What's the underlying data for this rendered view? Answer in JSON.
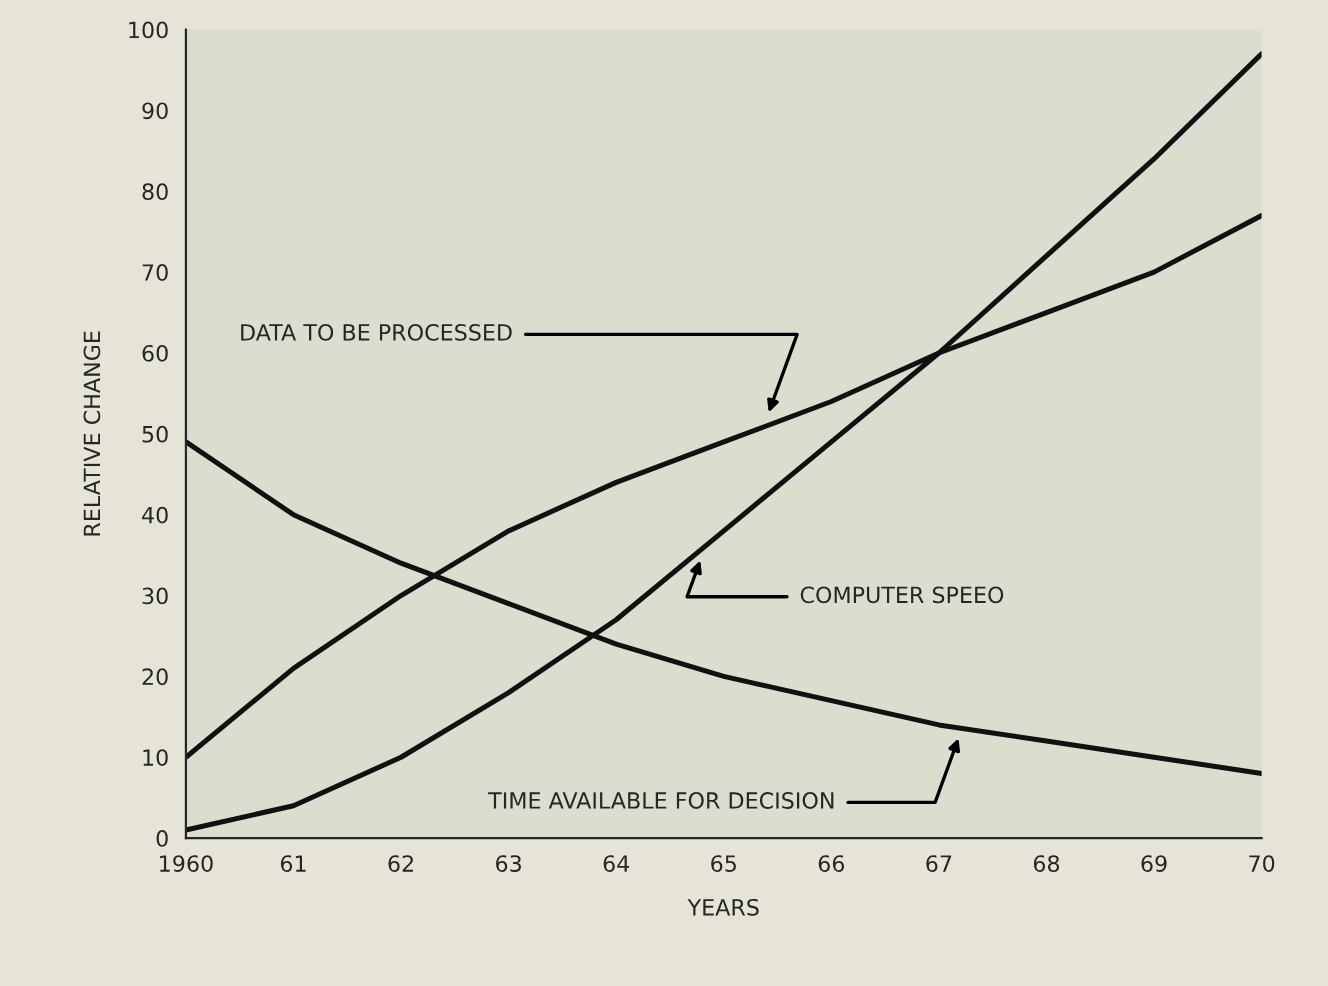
{
  "chart_data": {
    "type": "line",
    "xlabel": "YEARS",
    "ylabel": "RELATIVE CHANGE",
    "series": [
      {
        "color": "#111111",
        "x": [
          1960,
          1961,
          1962,
          1963,
          1964,
          1965,
          1966,
          1967,
          1968,
          1969,
          1970
        ],
        "values": [
          10,
          21,
          30,
          38,
          44,
          49,
          54,
          60,
          65,
          70,
          77
        ]
      },
      {
        "color": "#111111",
        "x": [
          1960,
          1961,
          1962,
          1963,
          1964,
          1965,
          1966,
          1967,
          1968,
          1969,
          1970
        ],
        "values": [
          1,
          4,
          10,
          18,
          27,
          38,
          49,
          60,
          72,
          84,
          97
        ]
      },
      {
        "color": "#111111",
        "x": [
          1960,
          1961,
          1962,
          1963,
          1964,
          1965,
          1966,
          1967,
          1968,
          1969,
          1970
        ],
        "values": [
          49,
          40,
          34,
          29,
          24,
          20,
          17,
          14,
          12,
          10,
          8
        ]
      }
    ],
    "xlim": [
      1960,
      1970
    ],
    "ylim": [
      0,
      100
    ],
    "xticks": [
      {
        "value": 1960,
        "label": "1960"
      },
      {
        "value": 1961,
        "label": "61"
      },
      {
        "value": 1962,
        "label": "62"
      },
      {
        "value": 1963,
        "label": "63"
      },
      {
        "value": 1964,
        "label": "64"
      },
      {
        "value": 1965,
        "label": "65"
      },
      {
        "value": 1966,
        "label": "66"
      },
      {
        "value": 1967,
        "label": "67"
      },
      {
        "value": 1968,
        "label": "68"
      },
      {
        "value": 1969,
        "label": "69"
      },
      {
        "value": 1970,
        "label": "70"
      }
    ],
    "yticks": [
      0,
      10,
      20,
      30,
      40,
      50,
      60,
      70,
      80,
      90,
      100
    ],
    "annotations": [
      {
        "text": "DATA TO BE PROCESSED",
        "x": 1965.4,
        "y": 52
      },
      {
        "text": "COMPUTER SPEEO",
        "x": 1964.8,
        "y": 35
      },
      {
        "text": "TIME AVAILABLE FOR DECISION",
        "x": 1967.2,
        "y": 13
      }
    ],
    "grid": false,
    "legend": false,
    "marker": "none",
    "line_style": "solid"
  }
}
